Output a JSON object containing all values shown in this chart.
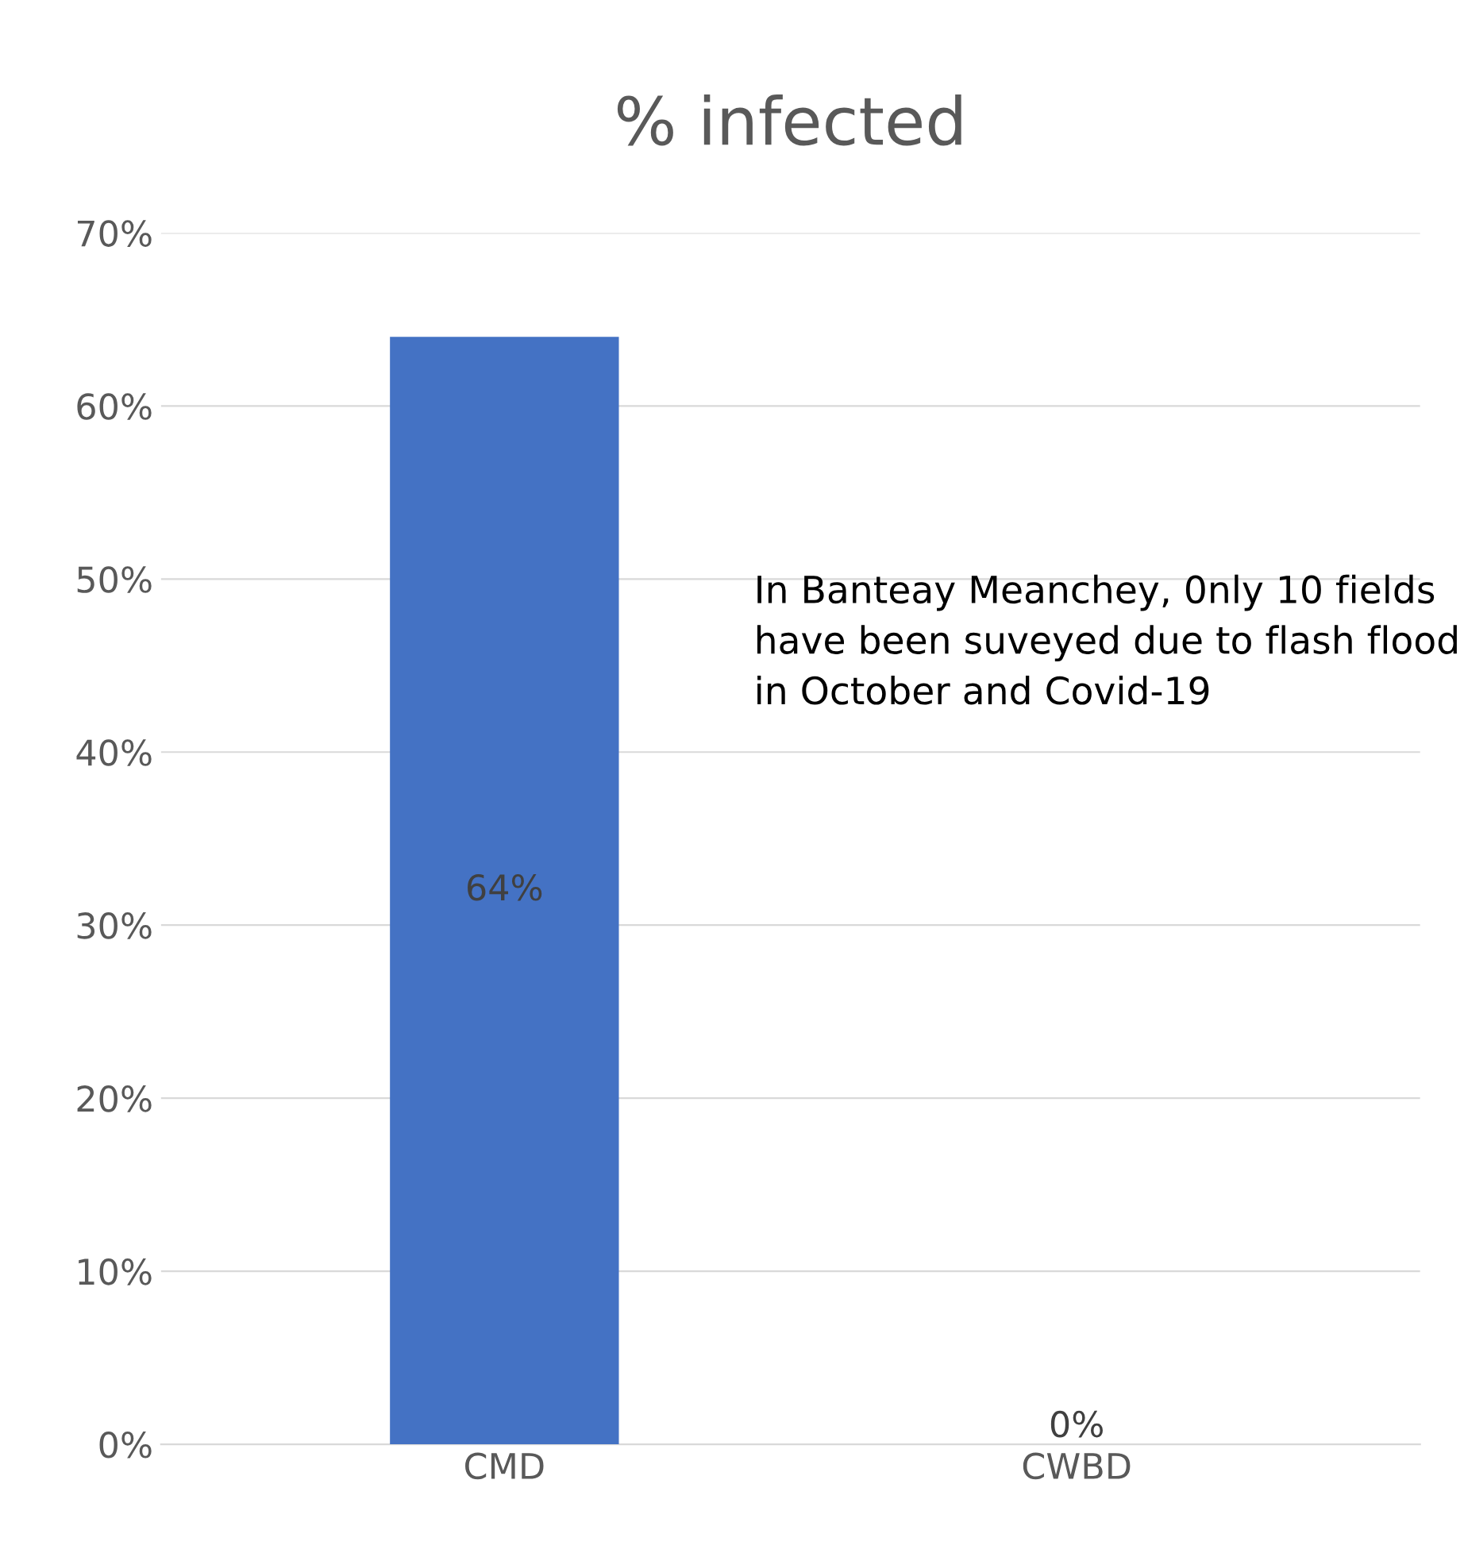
{
  "chart_data": {
    "type": "bar",
    "title": "% infected",
    "categories": [
      "CMD",
      "CWBD"
    ],
    "values": [
      64,
      0
    ],
    "colors": [
      "#4472c4",
      "#c00000"
    ],
    "value_labels": [
      "64%",
      "0%"
    ],
    "ylim": [
      0,
      70
    ],
    "yticks": [
      {
        "value": 0,
        "label": "0%"
      },
      {
        "value": 10,
        "label": "10%"
      },
      {
        "value": 20,
        "label": "20%"
      },
      {
        "value": 30,
        "label": "30%"
      },
      {
        "value": 40,
        "label": "40%"
      },
      {
        "value": 50,
        "label": "50%"
      },
      {
        "value": 60,
        "label": "60%"
      },
      {
        "value": 70,
        "label": "70%"
      }
    ],
    "grid": "y",
    "annotations": [
      "In Banteay Meanchey, 0nly 10 fields have been suveyed due to flash flood in October and Covid-19"
    ]
  }
}
